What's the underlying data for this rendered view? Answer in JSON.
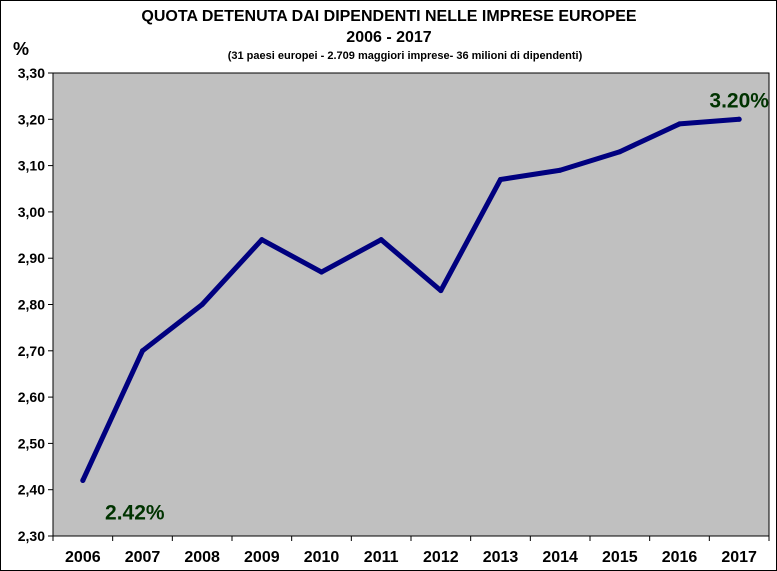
{
  "chart_data": {
    "type": "line",
    "title": "QUOTA DETENUTA DAI DIPENDENTI NELLE IMPRESE EUROPEE",
    "subtitle": "2006 - 2017",
    "note": "(31 paesi europei  - 2.709 maggiori imprese-  36 milioni di dipendenti)",
    "ylabel": "%",
    "xlabel": "",
    "categories": [
      "2006",
      "2007",
      "2008",
      "2009",
      "2010",
      "2011",
      "2012",
      "2013",
      "2014",
      "2015",
      "2016",
      "2017"
    ],
    "series": [
      {
        "values": [
          2.42,
          2.7,
          2.8,
          2.94,
          2.87,
          2.94,
          2.83,
          3.07,
          3.09,
          3.13,
          3.19,
          3.2
        ]
      }
    ],
    "ylim": [
      2.3,
      3.3
    ],
    "yticks": [
      "2,30",
      "2,40",
      "2,50",
      "2,60",
      "2,70",
      "2,80",
      "2,90",
      "3,00",
      "3,10",
      "3,20",
      "3,30"
    ],
    "annotations": [
      {
        "text": "2.42%",
        "category": "2006",
        "value": 2.42
      },
      {
        "text": "3.20%",
        "category": "2017",
        "value": 3.2
      }
    ],
    "grid": false,
    "legend": "none"
  },
  "colors": {
    "plot_background": "#c0c0c0",
    "line": "#00007f",
    "annotation": "#003300"
  }
}
